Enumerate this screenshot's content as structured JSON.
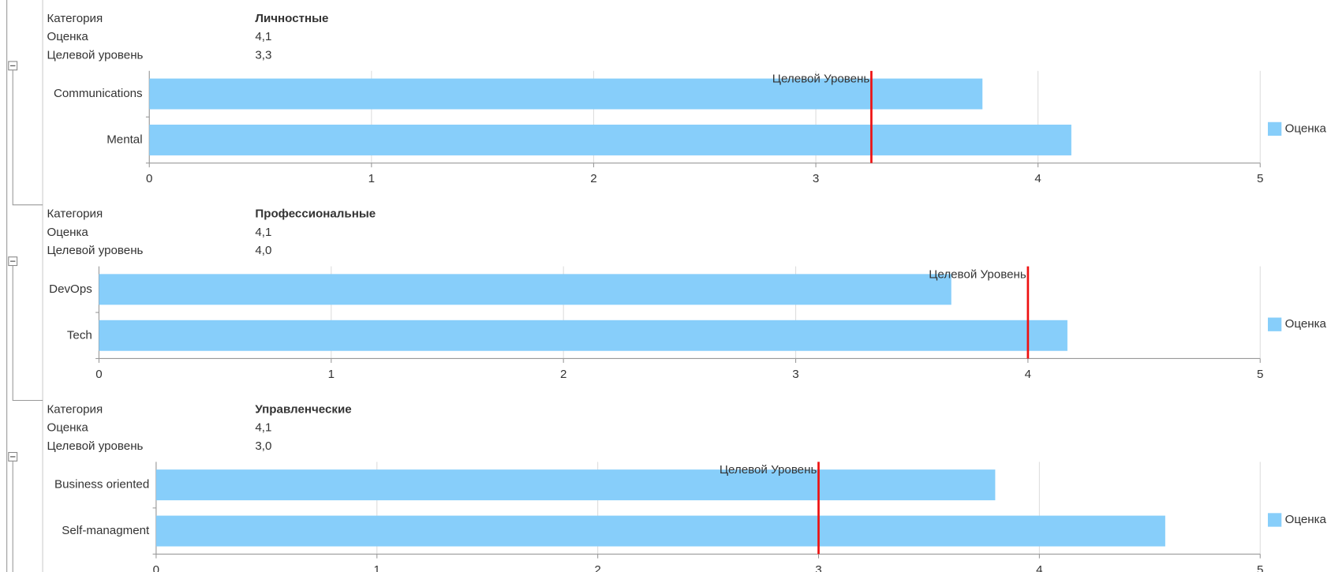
{
  "sections": [
    {
      "rows": [
        [
          "Категория",
          "Личностные"
        ],
        [
          "Оценка",
          "4,1"
        ],
        [
          "Целевой уровень",
          "3,3"
        ]
      ]
    },
    {
      "rows": [
        [
          "Категория",
          "Профессиональные"
        ],
        [
          "Оценка",
          "4,1"
        ],
        [
          "Целевой уровень",
          "4,0"
        ]
      ]
    },
    {
      "rows": [
        [
          "Категория",
          "Управленческие"
        ],
        [
          "Оценка",
          "4,1"
        ],
        [
          "Целевой уровень",
          "3,0"
        ]
      ]
    }
  ],
  "chart_data": [
    {
      "type": "bar",
      "orientation": "horizontal",
      "categories": [
        "Communications",
        "Mental"
      ],
      "series": [
        {
          "name": "Оценка",
          "color": "#87cefa",
          "values": [
            3.75,
            4.15
          ]
        }
      ],
      "target": 3.25,
      "target_label": "Целевой Уровень",
      "target_color": "#ee1111",
      "xlim": [
        0,
        5
      ],
      "xticks": [
        0,
        1,
        2,
        3,
        4,
        5
      ],
      "grid": true,
      "legend": "right"
    },
    {
      "type": "bar",
      "orientation": "horizontal",
      "categories": [
        "DevOps",
        "Tech"
      ],
      "series": [
        {
          "name": "Оценка",
          "color": "#87cefa",
          "values": [
            3.67,
            4.17
          ]
        }
      ],
      "target": 4.0,
      "target_label": "Целевой Уровень",
      "target_color": "#ee1111",
      "xlim": [
        0,
        5
      ],
      "xticks": [
        0,
        1,
        2,
        3,
        4,
        5
      ],
      "grid": true,
      "legend": "right"
    },
    {
      "type": "bar",
      "orientation": "horizontal",
      "categories": [
        "Business oriented",
        "Self-managment"
      ],
      "series": [
        {
          "name": "Оценка",
          "color": "#87cefa",
          "values": [
            3.8,
            4.57
          ]
        }
      ],
      "target": 3.0,
      "target_label": "Целевой Уровень",
      "target_color": "#ee1111",
      "xlim": [
        0,
        5
      ],
      "xticks": [
        0,
        1,
        2,
        3,
        4,
        5
      ],
      "grid": true,
      "legend": "right"
    }
  ]
}
